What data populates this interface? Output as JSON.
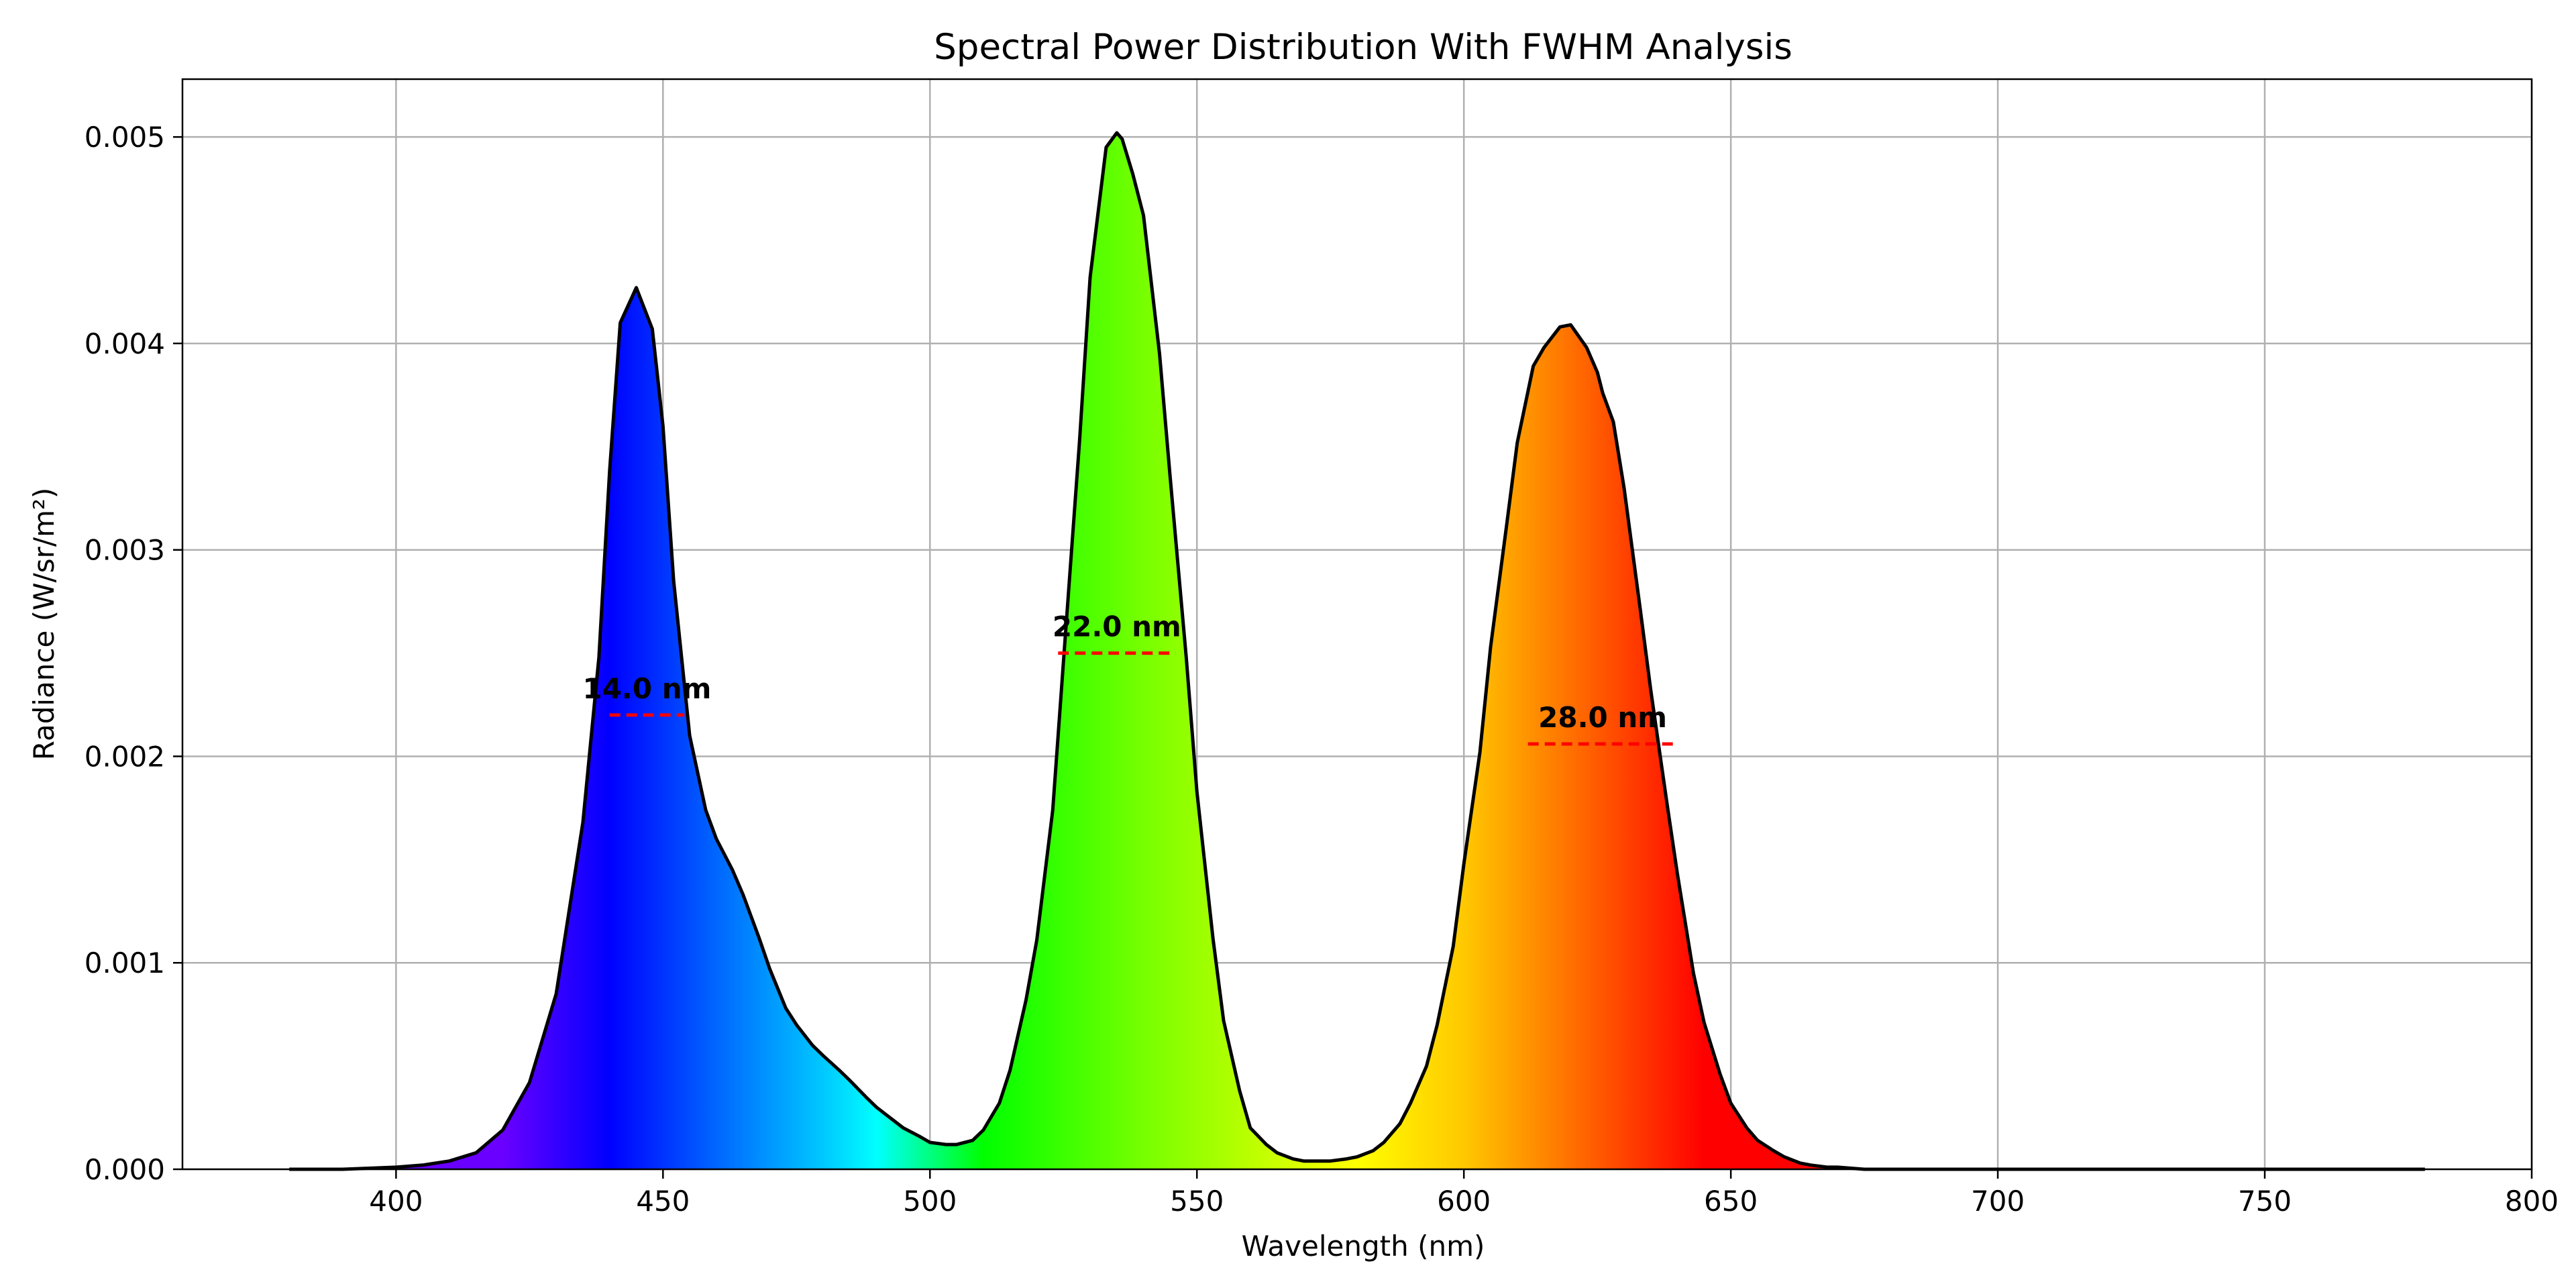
{
  "chart_data": {
    "type": "area",
    "title": "Spectral Power Distribution With FWHM Analysis",
    "xlabel": "Wavelength (nm)",
    "ylabel": "Radiance (W/sr/m²)",
    "xlim": [
      360,
      800
    ],
    "ylim": [
      0,
      0.00528
    ],
    "xticks": [
      400,
      450,
      500,
      550,
      600,
      650,
      700,
      750,
      800
    ],
    "yticks": [
      0.0,
      0.001,
      0.002,
      0.003,
      0.004,
      0.005
    ],
    "xtick_labels": [
      "400",
      "450",
      "500",
      "550",
      "600",
      "650",
      "700",
      "750",
      "800"
    ],
    "ytick_labels": [
      "0.000",
      "0.001",
      "0.002",
      "0.003",
      "0.004",
      "0.005"
    ],
    "grid": true,
    "fill": "wavelength-color-gradient",
    "series": [
      {
        "x": [
          380,
          390,
          400,
          405,
          410,
          415,
          420,
          425,
          430,
          435,
          438,
          440,
          442,
          445,
          448,
          450,
          452,
          455,
          458,
          460,
          463,
          465,
          468,
          470,
          473,
          475,
          478,
          480,
          483,
          485,
          488,
          490,
          493,
          495,
          498,
          500,
          503,
          505,
          508,
          510,
          513,
          515,
          518,
          520,
          523,
          525,
          528,
          530,
          533,
          535,
          536,
          538,
          540,
          543,
          545,
          548,
          550,
          553,
          555,
          558,
          560,
          563,
          565,
          568,
          570,
          573,
          575,
          578,
          580,
          583,
          585,
          588,
          590,
          593,
          595,
          598,
          600,
          603,
          605,
          608,
          610,
          613,
          615,
          618,
          620,
          623,
          625,
          626,
          628,
          630,
          633,
          635,
          638,
          640,
          643,
          645,
          648,
          650,
          653,
          655,
          658,
          660,
          663,
          665,
          668,
          670,
          675,
          680,
          690,
          700,
          720,
          750,
          780
        ],
        "y": [
          0,
          0,
          1e-05,
          2e-05,
          4e-05,
          8e-05,
          0.00019,
          0.00042,
          0.00085,
          0.00168,
          0.00248,
          0.00338,
          0.0041,
          0.00427,
          0.00407,
          0.0036,
          0.00285,
          0.0021,
          0.00174,
          0.0016,
          0.00145,
          0.00133,
          0.00112,
          0.00097,
          0.00078,
          0.0007,
          0.0006,
          0.00055,
          0.00048,
          0.00043,
          0.00035,
          0.0003,
          0.00024,
          0.0002,
          0.00016,
          0.00013,
          0.00012,
          0.00012,
          0.00014,
          0.00019,
          0.00032,
          0.00048,
          0.00082,
          0.00111,
          0.00174,
          0.00246,
          0.00352,
          0.00432,
          0.00495,
          0.00502,
          0.00499,
          0.00482,
          0.00462,
          0.00395,
          0.00335,
          0.00248,
          0.00183,
          0.00112,
          0.00072,
          0.00038,
          0.0002,
          0.00012,
          8e-05,
          5e-05,
          4e-05,
          4e-05,
          4e-05,
          5e-05,
          6e-05,
          9e-05,
          0.00013,
          0.00022,
          0.00032,
          0.0005,
          0.0007,
          0.00108,
          0.00148,
          0.00202,
          0.00253,
          0.00312,
          0.00352,
          0.00389,
          0.00398,
          0.00408,
          0.00409,
          0.00398,
          0.00386,
          0.00376,
          0.00362,
          0.0033,
          0.00272,
          0.00232,
          0.00178,
          0.00143,
          0.00095,
          0.00071,
          0.00046,
          0.00032,
          0.0002,
          0.00014,
          9e-05,
          6e-05,
          3e-05,
          2e-05,
          1e-05,
          1e-05,
          0,
          0,
          0,
          0,
          0,
          0,
          0
        ]
      }
    ],
    "annotations": [
      {
        "text": "14.0 nm",
        "x_center": 447,
        "y": 0.0022,
        "x_start": 440,
        "x_end": 454
      },
      {
        "text": "22.0 nm",
        "x_center": 535,
        "y": 0.0025,
        "x_start": 524,
        "x_end": 546
      },
      {
        "text": "28.0 nm",
        "x_center": 626,
        "y": 0.00206,
        "x_start": 612,
        "x_end": 640
      }
    ],
    "colors": {
      "curve": "#000000",
      "fwhm_line": "#ff0000",
      "gradient": [
        {
          "wl": 380,
          "color": "#6a00ff"
        },
        {
          "wl": 420,
          "color": "#6a00ff"
        },
        {
          "wl": 440,
          "color": "#0000ff"
        },
        {
          "wl": 460,
          "color": "#0066ff"
        },
        {
          "wl": 480,
          "color": "#00c8ff"
        },
        {
          "wl": 490,
          "color": "#00ffff"
        },
        {
          "wl": 510,
          "color": "#00ff00"
        },
        {
          "wl": 540,
          "color": "#77ff00"
        },
        {
          "wl": 580,
          "color": "#ffff00"
        },
        {
          "wl": 600,
          "color": "#ffc800"
        },
        {
          "wl": 620,
          "color": "#ff7000"
        },
        {
          "wl": 645,
          "color": "#ff0000"
        },
        {
          "wl": 700,
          "color": "#ff0000"
        },
        {
          "wl": 780,
          "color": "#ff0000"
        }
      ]
    }
  }
}
